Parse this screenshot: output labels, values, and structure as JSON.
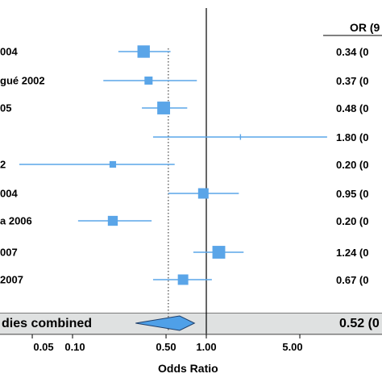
{
  "header": {
    "or_label": "OR (9"
  },
  "combined": {
    "label": "dies combined",
    "or_text": "0.52 (0"
  },
  "xaxis_label": "Odds Ratio",
  "colors": {
    "marker": "#5aa5e8",
    "ci_line": "#5aa5e8",
    "diamond": "#4fa0e8",
    "band": "#dfe1e1"
  },
  "chart_data": {
    "type": "forest",
    "xscale": "log",
    "xlim": [
      0.03,
      10
    ],
    "reference_line": 1.0,
    "pooled_line": 0.52,
    "xticks": [
      0.05,
      0.1,
      0.5,
      1.0,
      5.0
    ],
    "xtick_labels": [
      "0.05",
      "0.10",
      "0.50",
      "1.00",
      "5.00"
    ],
    "xlabel": "Odds Ratio",
    "studies": [
      {
        "label": "004",
        "or": 0.34,
        "ci": [
          0.22,
          0.54
        ],
        "weight": 14,
        "or_text": "0.34 (0"
      },
      {
        "label": "gué 2002",
        "or": 0.37,
        "ci": [
          0.17,
          0.85
        ],
        "weight": 6,
        "or_text": "0.37 (0"
      },
      {
        "label": "05",
        "or": 0.48,
        "ci": [
          0.33,
          0.72
        ],
        "weight": 15,
        "or_text": "0.48 (0"
      },
      {
        "label": "",
        "or": 1.8,
        "ci": [
          0.4,
          8.0
        ],
        "weight": 2,
        "or_text": "1.80 (0"
      },
      {
        "label": "2",
        "or": 0.2,
        "ci": [
          0.04,
          0.58
        ],
        "weight": 4,
        "or_text": "0.20 (0"
      },
      {
        "label": "004",
        "or": 0.95,
        "ci": [
          0.52,
          1.75
        ],
        "weight": 10,
        "or_text": "0.95 (0"
      },
      {
        "label": "a 2006",
        "or": 0.2,
        "ci": [
          0.11,
          0.39
        ],
        "weight": 9,
        "or_text": "0.20 (0"
      },
      {
        "label": "007",
        "or": 1.24,
        "ci": [
          0.8,
          1.9
        ],
        "weight": 15,
        "or_text": "1.24 (0"
      },
      {
        "label": "2007",
        "or": 0.67,
        "ci": [
          0.4,
          1.1
        ],
        "weight": 10,
        "or_text": "0.67 (0"
      }
    ],
    "pooled": {
      "or": 0.52,
      "ci": [
        0.38,
        0.71
      ]
    }
  }
}
